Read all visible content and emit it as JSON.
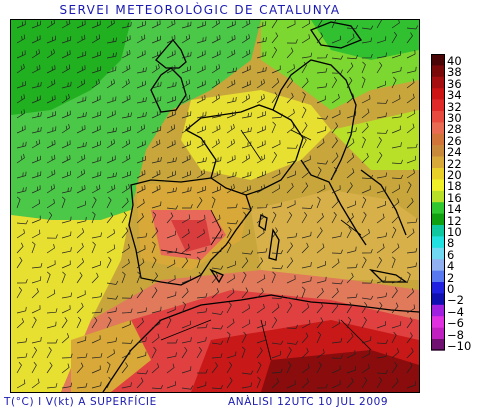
{
  "header": {
    "title": "SERVEI METEOROLÒGIC DE CATALUNYA"
  },
  "footer": {
    "left": "T(°C) I V(kt) A SUPERFÍCIE",
    "right": "ANÀLISI 12UTC 10 JUL 2009"
  },
  "legend": {
    "items": [
      {
        "label": "40",
        "color": "#4a0606"
      },
      {
        "label": "38",
        "color": "#7a0a0a"
      },
      {
        "label": "36",
        "color": "#a50f0f"
      },
      {
        "label": "34",
        "color": "#cc1414"
      },
      {
        "label": "32",
        "color": "#e02a2a"
      },
      {
        "label": "30",
        "color": "#e84a3e"
      },
      {
        "label": "28",
        "color": "#e86a50"
      },
      {
        "label": "26",
        "color": "#d0743a"
      },
      {
        "label": "24",
        "color": "#c88a3a"
      },
      {
        "label": "22",
        "color": "#d8a838"
      },
      {
        "label": "20",
        "color": "#e8d028"
      },
      {
        "label": "18",
        "color": "#f0f028"
      },
      {
        "label": "16",
        "color": "#b8e028"
      },
      {
        "label": "14",
        "color": "#30c830"
      },
      {
        "label": "12",
        "color": "#10a010"
      },
      {
        "label": "10",
        "color": "#10c8a0"
      },
      {
        "label": "8",
        "color": "#20e0e0"
      },
      {
        "label": "6",
        "color": "#70d8f0"
      },
      {
        "label": "4",
        "color": "#90b0f0"
      },
      {
        "label": "2",
        "color": "#5878f0"
      },
      {
        "label": "0",
        "color": "#2020e0"
      },
      {
        "label": "−2",
        "color": "#1010b0"
      },
      {
        "label": "−4",
        "color": "#a020e0"
      },
      {
        "label": "−6",
        "color": "#e030e0"
      },
      {
        "label": "−8",
        "color": "#c020c0"
      },
      {
        "label": "−10",
        "color": "#701070"
      }
    ]
  }
}
